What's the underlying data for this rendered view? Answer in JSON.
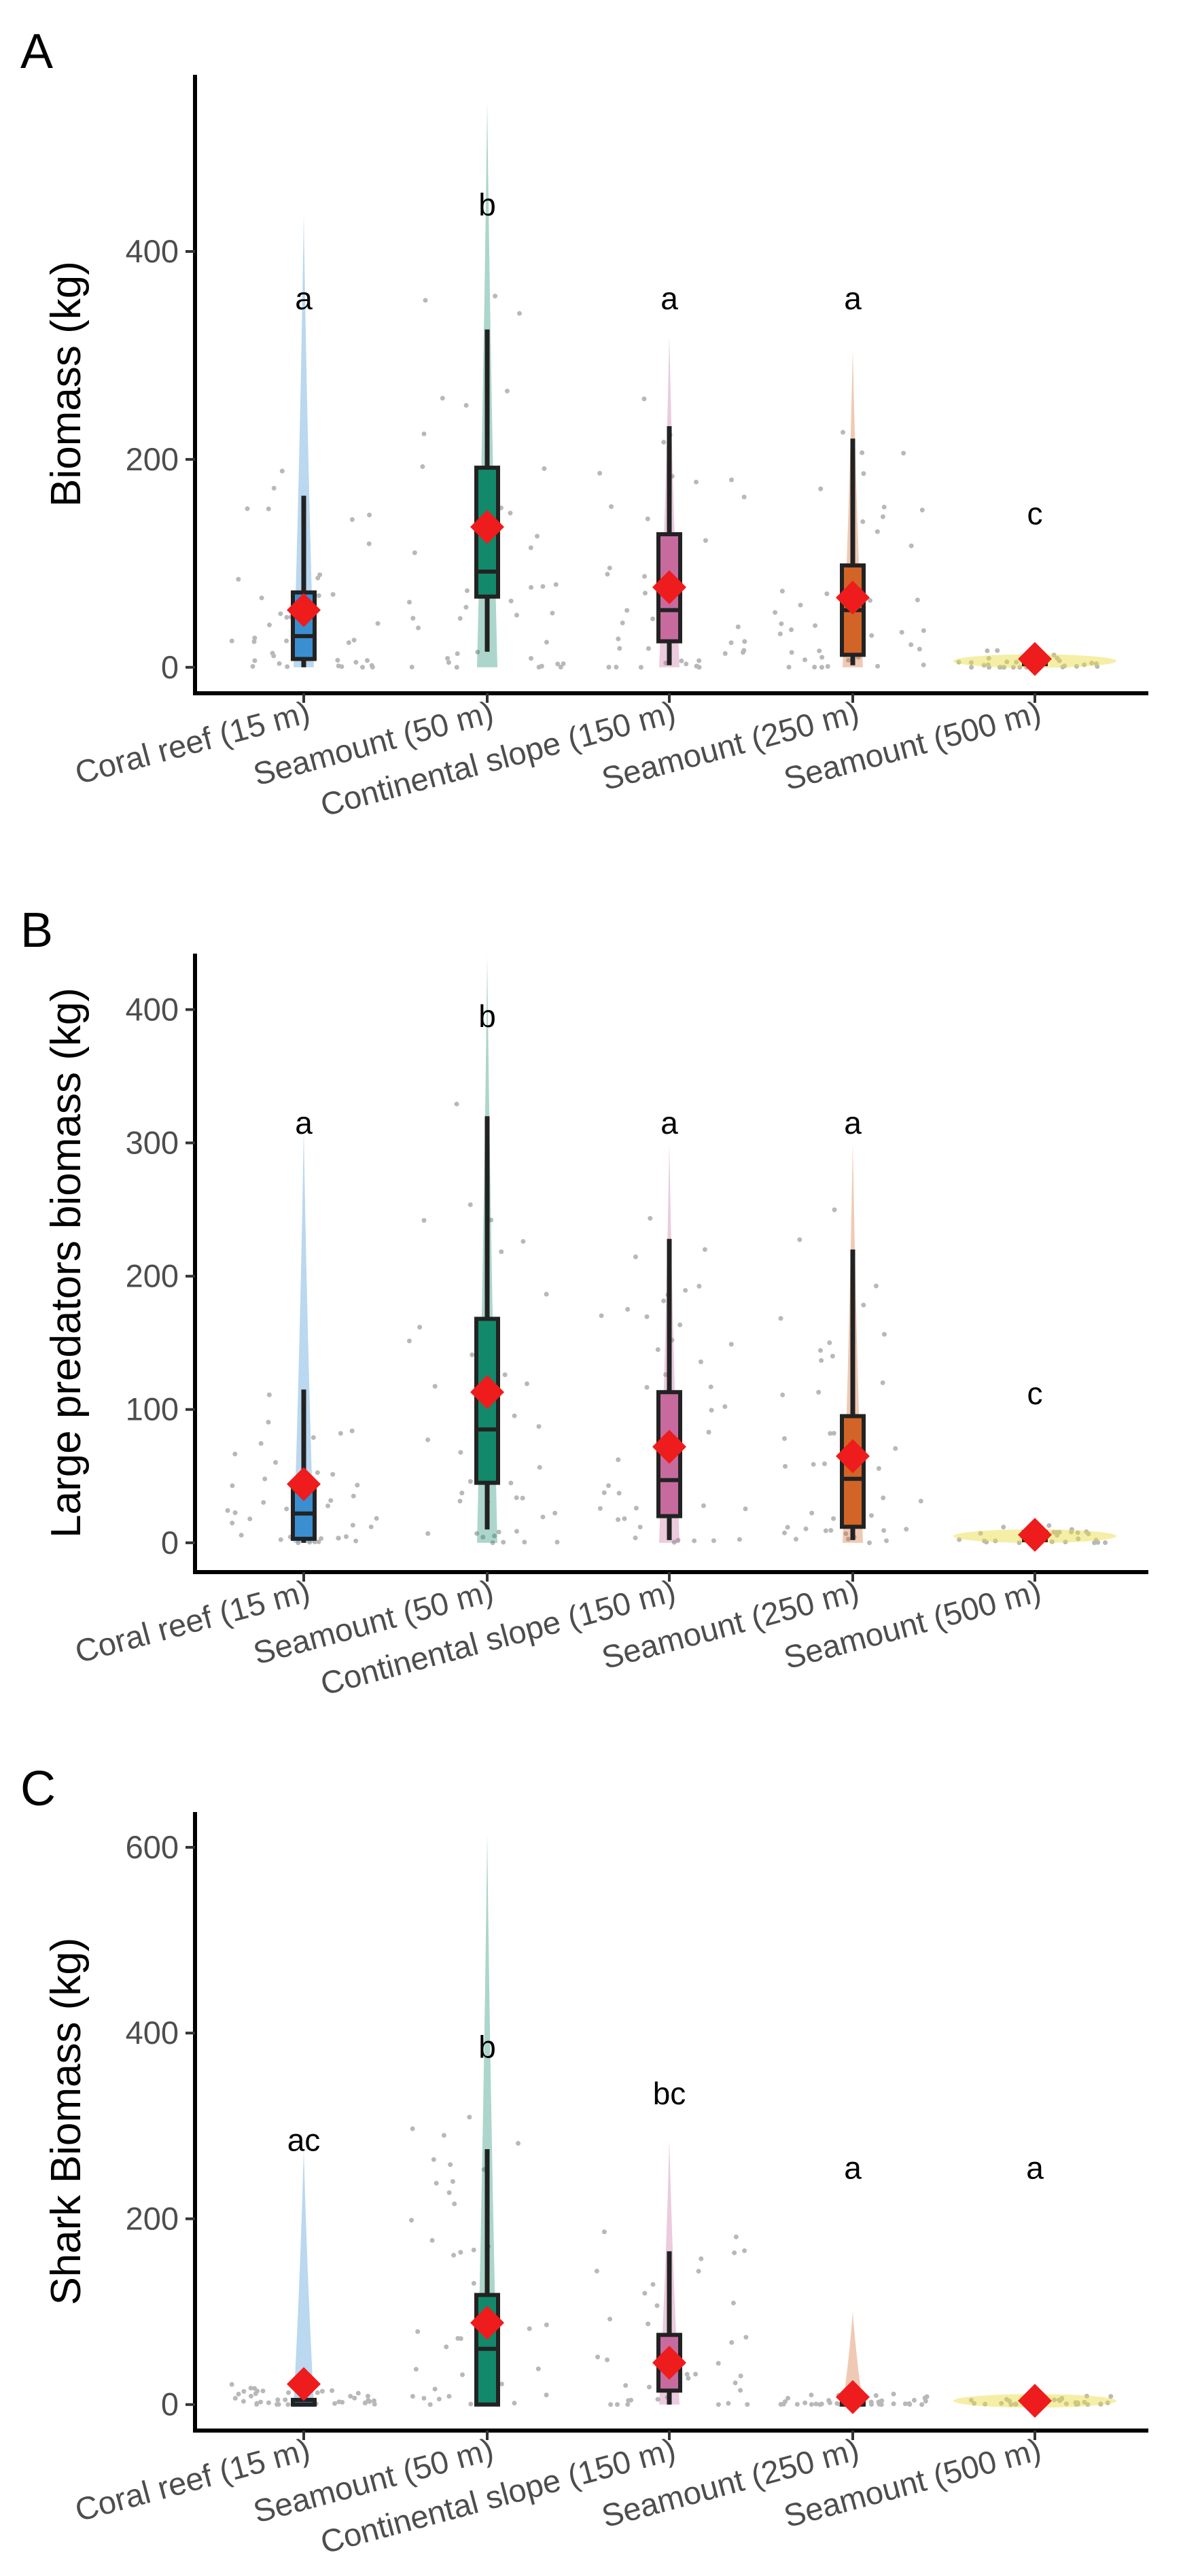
{
  "chart_data": [
    {
      "type": "box",
      "panel_label": "A",
      "ylabel": "Biomass (kg)",
      "ylim": [
        -25,
        570
      ],
      "yticks": [
        0,
        200,
        400
      ],
      "categories": [
        "Coral reef (15 m)",
        "Seamount (50 m)",
        "Continental slope (150 m)",
        "Seamount (250 m)",
        "Seamount (500 m)"
      ],
      "colors": [
        "#3a8fd1",
        "#12896b",
        "#c76b9f",
        "#d36427",
        "#e9d93a"
      ],
      "series": [
        {
          "name": "Coral reef (15 m)",
          "whisker_low": 0,
          "q1": 8,
          "median": 30,
          "q3": 72,
          "whisker_high": 165,
          "mean": 55,
          "violin_max": 435,
          "letter": "a",
          "letter_y": 355
        },
        {
          "name": "Seamount (50 m)",
          "whisker_low": 15,
          "q1": 68,
          "median": 92,
          "q3": 192,
          "whisker_high": 325,
          "mean": 135,
          "violin_max": 545,
          "letter": "b",
          "letter_y": 445
        },
        {
          "name": "Continental slope (150 m)",
          "whisker_low": 2,
          "q1": 25,
          "median": 55,
          "q3": 128,
          "whisker_high": 232,
          "mean": 77,
          "violin_max": 320,
          "letter": "a",
          "letter_y": 355
        },
        {
          "name": "Seamount (250 m)",
          "whisker_low": 2,
          "q1": 12,
          "median": 55,
          "q3": 98,
          "whisker_high": 220,
          "mean": 67,
          "violin_max": 305,
          "letter": "a",
          "letter_y": 355
        },
        {
          "name": "Seamount (500 m)",
          "whisker_low": 0,
          "q1": 3,
          "median": 6,
          "q3": 9,
          "whisker_high": 15,
          "mean": 8,
          "violin_max": 25,
          "letter": "c",
          "letter_y": 148
        }
      ]
    },
    {
      "type": "box",
      "panel_label": "B",
      "ylabel": "Large predators biomass (kg)",
      "ylim": [
        -22,
        442
      ],
      "yticks": [
        0,
        100,
        200,
        300,
        400
      ],
      "categories": [
        "Coral reef (15 m)",
        "Seamount (50 m)",
        "Continental slope (150 m)",
        "Seamount (250 m)",
        "Seamount (500 m)"
      ],
      "colors": [
        "#3a8fd1",
        "#12896b",
        "#c76b9f",
        "#d36427",
        "#e9d93a"
      ],
      "series": [
        {
          "name": "Coral reef (15 m)",
          "whisker_low": 0,
          "q1": 3,
          "median": 22,
          "q3": 45,
          "whisker_high": 115,
          "mean": 44,
          "violin_max": 310,
          "letter": "a",
          "letter_y": 315
        },
        {
          "name": "Seamount (50 m)",
          "whisker_low": 10,
          "q1": 45,
          "median": 85,
          "q3": 168,
          "whisker_high": 320,
          "mean": 113,
          "violin_max": 440,
          "letter": "b",
          "letter_y": 395
        },
        {
          "name": "Continental slope (150 m)",
          "whisker_low": 2,
          "q1": 20,
          "median": 47,
          "q3": 113,
          "whisker_high": 228,
          "mean": 72,
          "violin_max": 300,
          "letter": "a",
          "letter_y": 315
        },
        {
          "name": "Seamount (250 m)",
          "whisker_low": 2,
          "q1": 12,
          "median": 48,
          "q3": 95,
          "whisker_high": 220,
          "mean": 65,
          "violin_max": 300,
          "letter": "a",
          "letter_y": 315
        },
        {
          "name": "Seamount (500 m)",
          "whisker_low": 0,
          "q1": 2,
          "median": 5,
          "q3": 8,
          "whisker_high": 12,
          "mean": 6,
          "violin_max": 20,
          "letter": "c",
          "letter_y": 112
        }
      ]
    },
    {
      "type": "box",
      "panel_label": "C",
      "ylabel": "Shark Biomass (kg)",
      "ylim": [
        -28,
        638
      ],
      "yticks": [
        0,
        200,
        400,
        600
      ],
      "categories": [
        "Coral reef (15 m)",
        "Seamount (50 m)",
        "Continental slope (150 m)",
        "Seamount (250 m)",
        "Seamount (500 m)"
      ],
      "colors": [
        "#3a8fd1",
        "#12896b",
        "#c76b9f",
        "#d36427",
        "#e9d93a"
      ],
      "series": [
        {
          "name": "Coral reef (15 m)",
          "whisker_low": 0,
          "q1": 0,
          "median": 0,
          "q3": 5,
          "whisker_high": 20,
          "mean": 22,
          "violin_max": 275,
          "letter": "ac",
          "letter_y": 285
        },
        {
          "name": "Seamount (50 m)",
          "whisker_low": 0,
          "q1": 0,
          "median": 60,
          "q3": 118,
          "whisker_high": 275,
          "mean": 88,
          "violin_max": 615,
          "letter": "b",
          "letter_y": 385
        },
        {
          "name": "Continental slope (150 m)",
          "whisker_low": 0,
          "q1": 15,
          "median": 45,
          "q3": 75,
          "whisker_high": 165,
          "mean": 45,
          "violin_max": 285,
          "letter": "bc",
          "letter_y": 335
        },
        {
          "name": "Seamount (250 m)",
          "whisker_low": 0,
          "q1": 0,
          "median": 0,
          "q3": 3,
          "whisker_high": 10,
          "mean": 8,
          "violin_max": 100,
          "letter": "a",
          "letter_y": 255
        },
        {
          "name": "Seamount (500 m)",
          "whisker_low": 0,
          "q1": 2,
          "median": 4,
          "q3": 6,
          "whisker_high": 8,
          "mean": 4,
          "violin_max": 15,
          "letter": "a",
          "letter_y": 255
        }
      ]
    }
  ]
}
